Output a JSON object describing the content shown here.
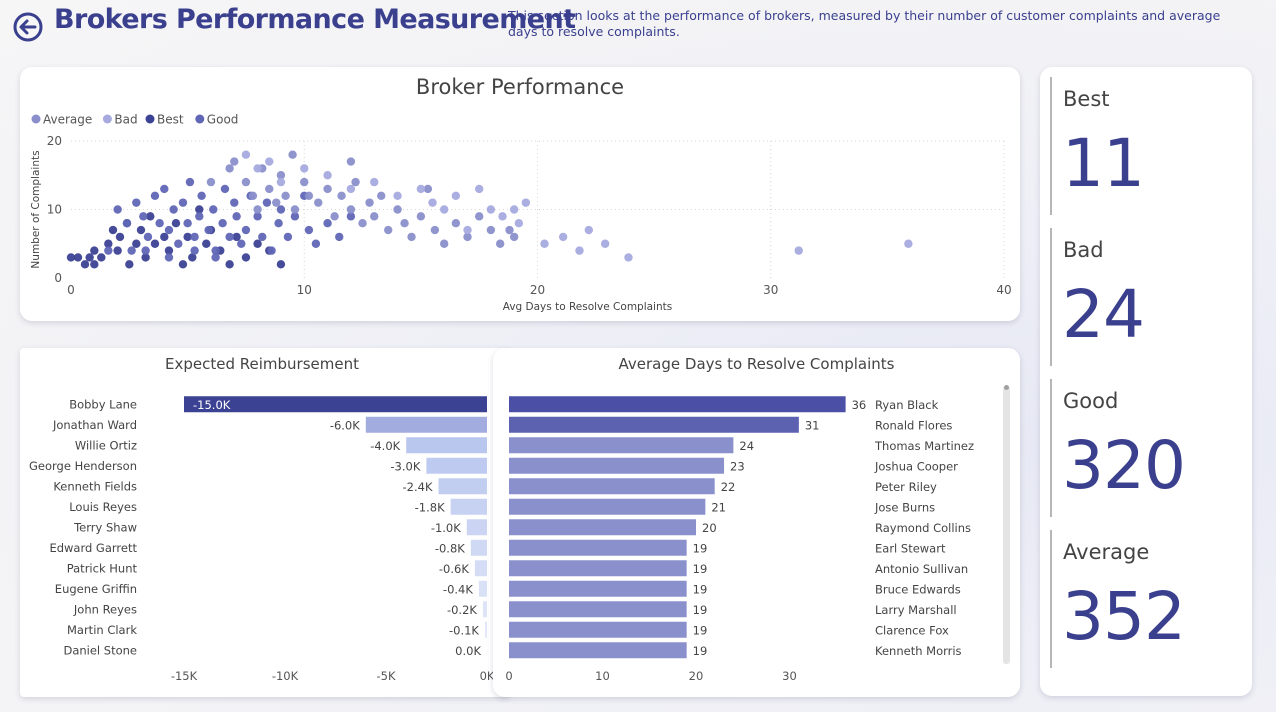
{
  "header": {
    "title": "Brokers Performance Measurement",
    "description": "This section looks at the performance of brokers, measured by their number of customer complaints and average days to resolve complaints."
  },
  "colors": {
    "title": "#3a3f8e",
    "best": "#3c4293",
    "good": "#6066b6",
    "average": "#8a8fcb",
    "bad": "#a6aade",
    "reimb_strong": "#3c4293",
    "reimb_light": "#c8d3f2"
  },
  "scatter": {
    "title": "Broker Performance",
    "legend": [
      "Average",
      "Bad",
      "Best",
      "Good"
    ],
    "chart_data": {
      "type": "scatter",
      "title": "Broker Performance",
      "xlabel": "Avg Days to Resolve Complaints",
      "ylabel": "Number of Complaints",
      "xlim": [
        0,
        40
      ],
      "ylim": [
        0,
        20
      ],
      "x_ticks": [
        "0",
        "10",
        "20",
        "30",
        "40"
      ],
      "y_ticks": [
        "0",
        "10",
        "20"
      ],
      "grid": true,
      "legend_position": "top-left",
      "series": [
        {
          "name": "Best",
          "points": [
            [
              0,
              3
            ],
            [
              0.3,
              3
            ],
            [
              0.6,
              2
            ],
            [
              0.8,
              3
            ],
            [
              1,
              4
            ],
            [
              1,
              2
            ],
            [
              1.3,
              3
            ],
            [
              1.6,
              5
            ],
            [
              1.8,
              7
            ],
            [
              2,
              4
            ],
            [
              2.1,
              6
            ],
            [
              2.4,
              8
            ],
            [
              2.5,
              2
            ],
            [
              2.8,
              5
            ],
            [
              3,
              7
            ],
            [
              3.2,
              3
            ],
            [
              3.4,
              9
            ],
            [
              3.6,
              5
            ],
            [
              4,
              6
            ],
            [
              4.2,
              4
            ],
            [
              4.5,
              8
            ],
            [
              4.8,
              2
            ],
            [
              5,
              6
            ],
            [
              5.2,
              3
            ],
            [
              5.5,
              10
            ],
            [
              5.8,
              5
            ],
            [
              6,
              7
            ],
            [
              6.4,
              4
            ],
            [
              6.8,
              2
            ],
            [
              7.1,
              6
            ],
            [
              7.5,
              3
            ],
            [
              8,
              5
            ],
            [
              8.5,
              4
            ],
            [
              9,
              2
            ]
          ]
        },
        {
          "name": "Good",
          "points": [
            [
              2,
              10
            ],
            [
              2.4,
              8
            ],
            [
              2.8,
              11
            ],
            [
              3.1,
              9
            ],
            [
              3.3,
              6
            ],
            [
              3.6,
              12
            ],
            [
              3.8,
              8
            ],
            [
              4,
              13
            ],
            [
              4.2,
              7
            ],
            [
              4.4,
              10
            ],
            [
              4.6,
              5
            ],
            [
              4.8,
              11
            ],
            [
              5,
              8
            ],
            [
              5.1,
              14
            ],
            [
              5.3,
              6
            ],
            [
              5.5,
              9
            ],
            [
              5.6,
              12
            ],
            [
              5.9,
              7
            ],
            [
              6.1,
              10
            ],
            [
              6.2,
              4
            ],
            [
              6.5,
              8
            ],
            [
              6.6,
              13
            ],
            [
              6.8,
              6
            ],
            [
              7,
              11
            ],
            [
              7.1,
              9
            ],
            [
              7.3,
              5
            ],
            [
              7.5,
              7
            ],
            [
              7.7,
              12
            ],
            [
              8,
              9
            ],
            [
              8.2,
              6
            ],
            [
              8.4,
              11
            ],
            [
              8.6,
              4
            ],
            [
              8.9,
              8
            ],
            [
              9,
              10
            ],
            [
              9.3,
              6
            ],
            [
              9.6,
              9
            ],
            [
              10,
              12
            ],
            [
              10.2,
              7
            ],
            [
              10.5,
              5
            ],
            [
              11,
              8
            ],
            [
              11.5,
              6
            ],
            [
              12,
              9
            ],
            [
              4.2,
              3
            ],
            [
              5.3,
              4
            ],
            [
              6.2,
              3
            ],
            [
              3.2,
              4
            ],
            [
              2.6,
              4
            ],
            [
              1.6,
              4
            ]
          ]
        },
        {
          "name": "Average",
          "points": [
            [
              7,
              17
            ],
            [
              7.5,
              14
            ],
            [
              7.8,
              12
            ],
            [
              8,
              10
            ],
            [
              8.2,
              16
            ],
            [
              8.5,
              13
            ],
            [
              8.8,
              11
            ],
            [
              9,
              15
            ],
            [
              9.2,
              12
            ],
            [
              9.6,
              10
            ],
            [
              10,
              14
            ],
            [
              10.2,
              12
            ],
            [
              10.6,
              11
            ],
            [
              11,
              13
            ],
            [
              11.3,
              9
            ],
            [
              11.6,
              12
            ],
            [
              12,
              10
            ],
            [
              12.2,
              14
            ],
            [
              12.5,
              8
            ],
            [
              12.8,
              11
            ],
            [
              13,
              9
            ],
            [
              13.3,
              12
            ],
            [
              13.6,
              7
            ],
            [
              14,
              10
            ],
            [
              14.3,
              8
            ],
            [
              14.6,
              6
            ],
            [
              15,
              9
            ],
            [
              15.3,
              13
            ],
            [
              15.6,
              7
            ],
            [
              16,
              5
            ],
            [
              16.5,
              8
            ],
            [
              17,
              6
            ],
            [
              17.5,
              9
            ],
            [
              18,
              7
            ],
            [
              18.4,
              5
            ],
            [
              18.8,
              7
            ],
            [
              19,
              6
            ],
            [
              9.5,
              18
            ],
            [
              12,
              17
            ],
            [
              6,
              14
            ],
            [
              6.8,
              16
            ]
          ]
        },
        {
          "name": "Bad",
          "points": [
            [
              7.5,
              18
            ],
            [
              8,
              16
            ],
            [
              8.5,
              17
            ],
            [
              9,
              14
            ],
            [
              10,
              16
            ],
            [
              11,
              15
            ],
            [
              12,
              13
            ],
            [
              13,
              14
            ],
            [
              14,
              12
            ],
            [
              15,
              13
            ],
            [
              15.5,
              11
            ],
            [
              16,
              10
            ],
            [
              16.5,
              12
            ],
            [
              17,
              7
            ],
            [
              17.5,
              13
            ],
            [
              18,
              10
            ],
            [
              18.5,
              9
            ],
            [
              19,
              10
            ],
            [
              19.2,
              8
            ],
            [
              19.5,
              11
            ],
            [
              20.3,
              5
            ],
            [
              21.1,
              6
            ],
            [
              21.8,
              4
            ],
            [
              22.2,
              7
            ],
            [
              22.9,
              5
            ],
            [
              23.9,
              3
            ],
            [
              31.2,
              4
            ],
            [
              35.9,
              5
            ]
          ]
        }
      ]
    }
  },
  "reimbursement": {
    "title": "Expected Reimbursement",
    "chart_data": {
      "type": "bar",
      "orientation": "horizontal",
      "title": "Expected Reimbursement",
      "categories": [
        "Bobby Lane",
        "Jonathan Ward",
        "Willie Ortiz",
        "George Henderson",
        "Kenneth Fields",
        "Louis Reyes",
        "Terry Shaw",
        "Edward Garrett",
        "Patrick Hunt",
        "Eugene Griffin",
        "John Reyes",
        "Martin Clark",
        "Daniel Stone"
      ],
      "values": [
        -15000,
        -6000,
        -4000,
        -3000,
        -2400,
        -1800,
        -1000,
        -800,
        -600,
        -400,
        -200,
        -100,
        0
      ],
      "labels": [
        "-15.0K",
        "-6.0K",
        "-4.0K",
        "-3.0K",
        "-2.4K",
        "-1.8K",
        "-1.0K",
        "-0.8K",
        "-0.6K",
        "-0.4K",
        "-0.2K",
        "-0.1K",
        "0.0K"
      ],
      "x_ticks": [
        "-15K",
        "-10K",
        "-5K",
        "0K"
      ],
      "xlim": [
        -15000,
        0
      ]
    }
  },
  "days": {
    "title": "Average Days to Resolve Complaints",
    "chart_data": {
      "type": "bar",
      "orientation": "horizontal",
      "title": "Average Days to Resolve Complaints",
      "categories": [
        "Ryan Black",
        "Ronald Flores",
        "Thomas Martinez",
        "Joshua Cooper",
        "Peter Riley",
        "Jose Burns",
        "Raymond Collins",
        "Earl Stewart",
        "Antonio Sullivan",
        "Bruce Edwards",
        "Larry Marshall",
        "Clarence Fox",
        "Kenneth Morris"
      ],
      "values": [
        36,
        31,
        24,
        23,
        22,
        21,
        20,
        19,
        19,
        19,
        19,
        19,
        19
      ],
      "x_ticks": [
        "0",
        "10",
        "20",
        "30"
      ],
      "xlim": [
        0,
        36
      ]
    }
  },
  "kpis": [
    {
      "label": "Best",
      "value": "11"
    },
    {
      "label": "Bad",
      "value": "24"
    },
    {
      "label": "Good",
      "value": "320"
    },
    {
      "label": "Average",
      "value": "352"
    }
  ]
}
